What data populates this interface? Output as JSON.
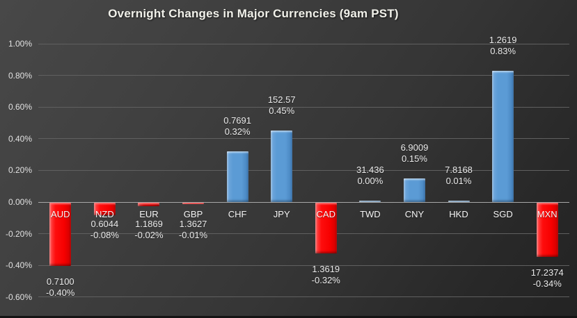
{
  "chart_data": {
    "type": "bar",
    "title": "Overnight Changes in Major Currencies (9am PST)",
    "xlabel": "",
    "ylabel": "",
    "ylim": [
      -0.6,
      1.0
    ],
    "ytick_step": 0.2,
    "yticks": [
      "1.00%",
      "0.80%",
      "0.60%",
      "0.40%",
      "0.20%",
      "0.00%",
      "-0.20%",
      "-0.40%",
      "-0.60%"
    ],
    "ytick_values": [
      1.0,
      0.8,
      0.6,
      0.4,
      0.2,
      0.0,
      -0.2,
      -0.4,
      -0.6
    ],
    "grid": true,
    "legend": "none",
    "colors": {
      "positive_bar": "#5B9BD5",
      "negative_bar": "#FE0000",
      "background": "#3A3A3A",
      "text": "#EBEBEB"
    },
    "categories": [
      "AUD",
      "NZD",
      "EUR",
      "GBP",
      "CHF",
      "JPY",
      "CAD",
      "TWD",
      "CNY",
      "HKD",
      "SGD",
      "MXN"
    ],
    "points": [
      {
        "code": "AUD",
        "rate": "0.7100",
        "pct": -0.4,
        "pct_label": "-0.40%"
      },
      {
        "code": "NZD",
        "rate": "0.6044",
        "pct": -0.08,
        "pct_label": "-0.08%"
      },
      {
        "code": "EUR",
        "rate": "1.1869",
        "pct": -0.02,
        "pct_label": "-0.02%"
      },
      {
        "code": "GBP",
        "rate": "1.3627",
        "pct": -0.01,
        "pct_label": "-0.01%"
      },
      {
        "code": "CHF",
        "rate": "0.7691",
        "pct": 0.32,
        "pct_label": "0.32%"
      },
      {
        "code": "JPY",
        "rate": "152.57",
        "pct": 0.45,
        "pct_label": "0.45%"
      },
      {
        "code": "CAD",
        "rate": "1.3619",
        "pct": -0.32,
        "pct_label": "-0.32%"
      },
      {
        "code": "TWD",
        "rate": "31.436",
        "pct": 0.0,
        "pct_label": "0.00%"
      },
      {
        "code": "CNY",
        "rate": "6.9009",
        "pct": 0.15,
        "pct_label": "0.15%"
      },
      {
        "code": "HKD",
        "rate": "7.8168",
        "pct": 0.01,
        "pct_label": "0.01%"
      },
      {
        "code": "SGD",
        "rate": "1.2619",
        "pct": 0.83,
        "pct_label": "0.83%"
      },
      {
        "code": "MXN",
        "rate": "17.2374",
        "pct": -0.34,
        "pct_label": "-0.34%"
      }
    ]
  }
}
